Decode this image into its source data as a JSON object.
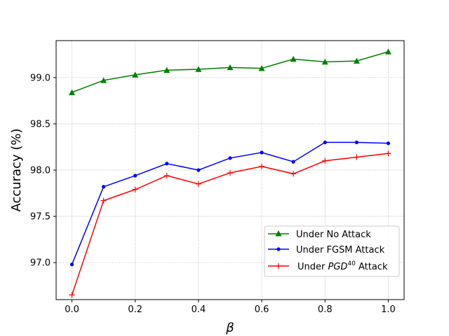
{
  "chart_data": {
    "type": "line",
    "xlabel": "β",
    "ylabel": "Accuracy (%)",
    "xlim": [
      -0.05,
      1.05
    ],
    "ylim": [
      96.6,
      99.4
    ],
    "x_ticks": [
      0.0,
      0.2,
      0.4,
      0.6,
      0.8,
      1.0
    ],
    "x_tick_labels": [
      "0.0",
      "0.2",
      "0.4",
      "0.6",
      "0.8",
      "1.0"
    ],
    "y_ticks": [
      97.0,
      97.5,
      98.0,
      98.5,
      99.0
    ],
    "y_tick_labels": [
      "97.0",
      "97.5",
      "98.0",
      "98.5",
      "99.0"
    ],
    "grid": true,
    "legend_position": "lower-right",
    "x": [
      0.0,
      0.1,
      0.2,
      0.3,
      0.4,
      0.5,
      0.6,
      0.7,
      0.8,
      0.9,
      1.0
    ],
    "series": [
      {
        "name": "Under No Attack",
        "color": "#008000",
        "marker": "triangle",
        "values": [
          98.84,
          98.97,
          99.03,
          99.08,
          99.09,
          99.11,
          99.1,
          99.2,
          99.17,
          99.18,
          99.28
        ]
      },
      {
        "name": "Under FGSM Attack",
        "color": "#0000ff",
        "marker": "dot",
        "values": [
          96.98,
          97.82,
          97.94,
          98.07,
          98.0,
          98.13,
          98.19,
          98.09,
          98.3,
          98.3,
          98.29
        ]
      },
      {
        "name": "Under PGD40 Attack",
        "color": "#ff0000",
        "marker": "plus",
        "values": [
          96.65,
          97.67,
          97.79,
          97.94,
          97.85,
          97.97,
          98.04,
          97.96,
          98.1,
          98.14,
          98.18
        ]
      }
    ],
    "legend_labels": {
      "no_attack": "Under No Attack",
      "fgsm": "Under FGSM Attack",
      "pgd_prefix": "Under ",
      "pgd_name": "PGD",
      "pgd_sup": "40",
      "pgd_suffix": " Attack"
    }
  }
}
